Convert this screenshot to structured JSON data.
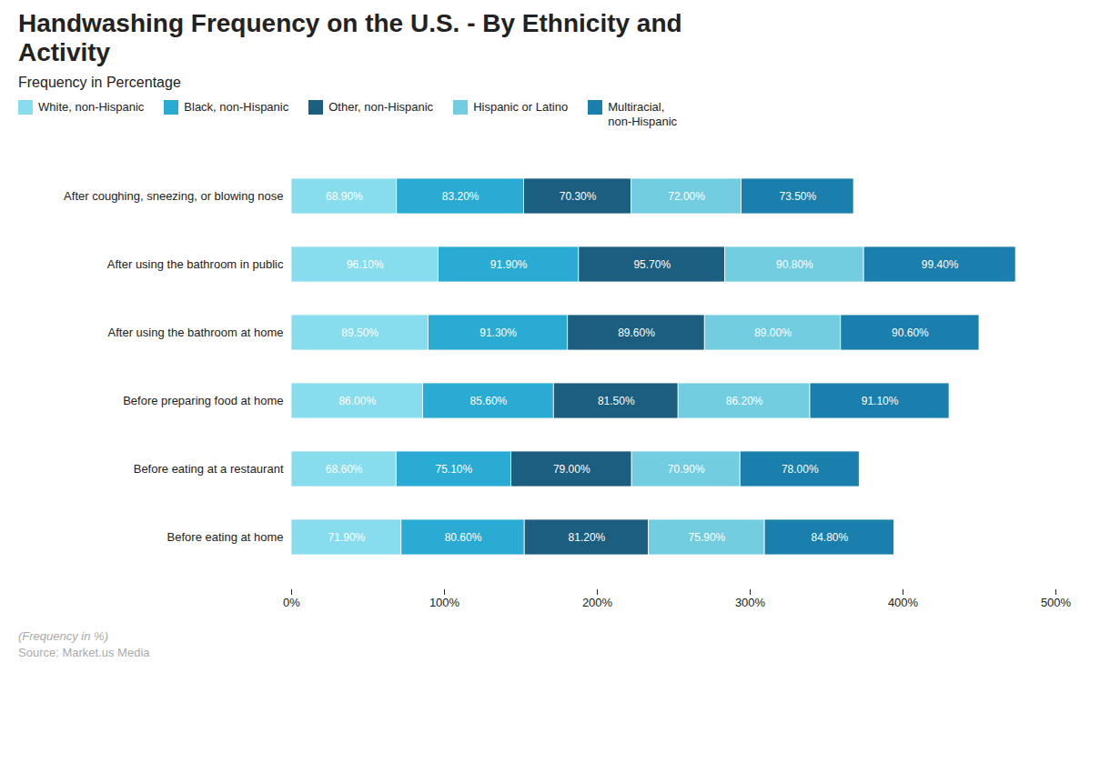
{
  "chart_data": {
    "type": "bar",
    "orientation": "horizontal",
    "stacked": true,
    "title": "Handwashing Frequency on the U.S. - By Ethnicity and\nActivity",
    "subtitle": "Frequency in Percentage",
    "annotations": [
      "(Frequency in %)",
      "Source: Market.us Media"
    ],
    "categories": [
      "After coughing, sneezing, or blowing nose",
      "After using the bathroom in public",
      "After using the bathroom at home",
      "Before preparing food at home",
      "Before eating at a restaurant",
      "Before eating at home"
    ],
    "series": [
      {
        "name": "White, non-Hispanic",
        "color": "#87DDEE",
        "values": [
          68.9,
          96.1,
          89.5,
          86.0,
          68.6,
          71.9
        ],
        "value_labels": [
          "68.90%",
          "96.10%",
          "89.50%",
          "86.00%",
          "68.60%",
          "71.90%"
        ]
      },
      {
        "name": "Black, non-Hispanic",
        "color": "#29ABD4",
        "values": [
          83.2,
          91.9,
          91.3,
          85.6,
          75.1,
          80.6
        ],
        "value_labels": [
          "83.20%",
          "91.90%",
          "91.30%",
          "85.60%",
          "75.10%",
          "80.60%"
        ]
      },
      {
        "name": "Other, non-Hispanic",
        "color": "#1B5E80",
        "values": [
          70.3,
          95.7,
          89.6,
          81.5,
          79.0,
          81.2
        ],
        "value_labels": [
          "70.30%",
          "95.70%",
          "89.60%",
          "81.50%",
          "79.00%",
          "81.20%"
        ]
      },
      {
        "name": "Hispanic or Latino",
        "color": "#72CDE0",
        "values": [
          72.0,
          90.8,
          89.0,
          86.2,
          70.9,
          75.9
        ],
        "value_labels": [
          "72.00%",
          "90.80%",
          "89.00%",
          "86.20%",
          "70.90%",
          "75.90%"
        ]
      },
      {
        "name": "Multiracial,\nnon-Hispanic",
        "color": "#1A7FAD",
        "values": [
          73.5,
          99.4,
          90.6,
          91.1,
          78.0,
          84.8
        ],
        "value_labels": [
          "73.50%",
          "99.40%",
          "90.60%",
          "91.10%",
          "78.00%",
          "84.80%"
        ]
      }
    ],
    "xlim": [
      0,
      500
    ],
    "xticks": [
      {
        "value": 0,
        "label": "0%"
      },
      {
        "value": 100,
        "label": "100%"
      },
      {
        "value": 200,
        "label": "200%"
      },
      {
        "value": 300,
        "label": "300%"
      },
      {
        "value": 400,
        "label": "400%"
      },
      {
        "value": 500,
        "label": "500%"
      }
    ],
    "data_labels": true,
    "grid": false,
    "legend": "top"
  }
}
